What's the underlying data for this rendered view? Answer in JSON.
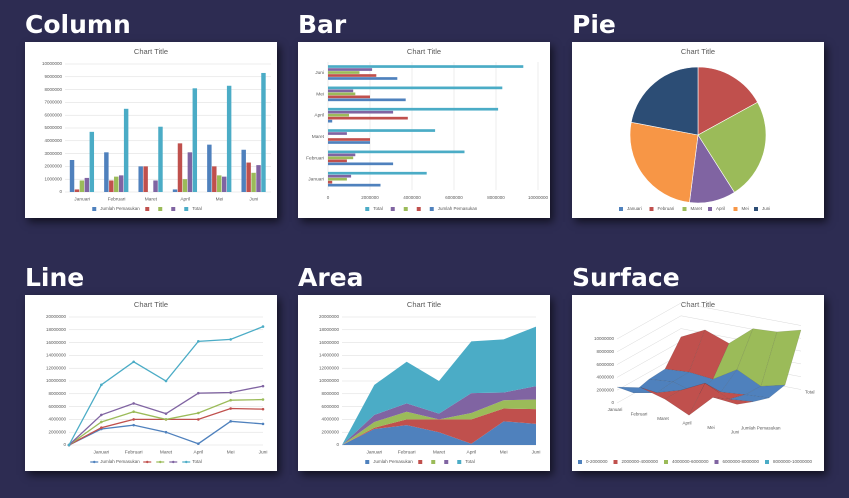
{
  "chart_data": [
    {
      "type": "column",
      "heading": "Column",
      "title": "Chart Title",
      "categories": [
        "Januari",
        "Februari",
        "Maret",
        "April",
        "Mei",
        "Juni"
      ],
      "series": [
        {
          "name": "Jumlah Pemasukan",
          "color": "#4f81bd",
          "values": [
            2500000,
            3100000,
            2000000,
            200000,
            3700000,
            3300000
          ]
        },
        {
          "name": null,
          "color": "#c0504d",
          "values": [
            200000,
            900000,
            2000000,
            3800000,
            2000000,
            2300000
          ]
        },
        {
          "name": null,
          "color": "#9bbb59",
          "values": [
            900000,
            1200000,
            0,
            1000000,
            1300000,
            1500000
          ]
        },
        {
          "name": null,
          "color": "#8064a2",
          "values": [
            1100000,
            1300000,
            900000,
            3100000,
            1200000,
            2100000
          ]
        },
        {
          "name": "Total",
          "color": "#4bacc6",
          "values": [
            4700000,
            6500000,
            5100000,
            8100000,
            8300000,
            9300000
          ]
        }
      ],
      "ylim": [
        0,
        10000000
      ],
      "yticks": [
        0,
        1000000,
        2000000,
        3000000,
        4000000,
        5000000,
        6000000,
        7000000,
        8000000,
        9000000,
        10000000
      ],
      "grid": true,
      "legend": "bottom"
    },
    {
      "type": "bar",
      "heading": "Bar",
      "title": "Chart Title",
      "categories": [
        "Januari",
        "Februari",
        "Maret",
        "April",
        "Mei",
        "Juni"
      ],
      "series": [
        {
          "name": "Jumlah Pemasukan",
          "color": "#4f81bd",
          "values": [
            2500000,
            3100000,
            2000000,
            200000,
            3700000,
            3300000
          ]
        },
        {
          "name": null,
          "color": "#c0504d",
          "values": [
            200000,
            900000,
            2000000,
            3800000,
            2000000,
            2300000
          ]
        },
        {
          "name": null,
          "color": "#9bbb59",
          "values": [
            900000,
            1200000,
            0,
            1000000,
            1300000,
            1500000
          ]
        },
        {
          "name": null,
          "color": "#8064a2",
          "values": [
            1100000,
            1300000,
            900000,
            3100000,
            1200000,
            2100000
          ]
        },
        {
          "name": "Total",
          "color": "#4bacc6",
          "values": [
            4700000,
            6500000,
            5100000,
            8100000,
            8300000,
            9300000
          ]
        }
      ],
      "xlim": [
        0,
        10000000
      ],
      "xticks": [
        0,
        2000000,
        4000000,
        6000000,
        8000000,
        10000000
      ],
      "grid": true,
      "legend": "bottom"
    },
    {
      "type": "pie",
      "heading": "Pie",
      "title": "Chart Title",
      "categories": [
        "Januari",
        "Februari",
        "Maret",
        "April",
        "Mei",
        "Juni"
      ],
      "values": [
        0,
        17,
        24,
        11,
        26,
        22
      ],
      "colors": [
        "#4f81bd",
        "#c0504d",
        "#9bbb59",
        "#8064a2",
        "#f79646",
        "#2c4d75"
      ],
      "legend": "bottom"
    },
    {
      "type": "line",
      "heading": "Line",
      "title": "Chart Title",
      "stacked": true,
      "categories": [
        null,
        "Januari",
        "Februari",
        "Maret",
        "April",
        "Mei",
        "Juni"
      ],
      "series": [
        {
          "name": "Jumlah Pemasukan",
          "color": "#4f81bd",
          "values": [
            0,
            2500000,
            3100000,
            2000000,
            200000,
            3700000,
            3300000
          ]
        },
        {
          "name": null,
          "color": "#c0504d",
          "values": [
            0,
            200000,
            900000,
            2000000,
            3800000,
            2000000,
            2300000
          ]
        },
        {
          "name": null,
          "color": "#9bbb59",
          "values": [
            0,
            900000,
            1200000,
            0,
            1000000,
            1300000,
            1500000
          ]
        },
        {
          "name": null,
          "color": "#8064a2",
          "values": [
            0,
            1100000,
            1300000,
            900000,
            3100000,
            1200000,
            2100000
          ]
        },
        {
          "name": "Total",
          "color": "#4bacc6",
          "values": [
            0,
            4700000,
            6500000,
            5100000,
            8100000,
            8300000,
            9300000
          ]
        }
      ],
      "ylim": [
        0,
        20000000
      ],
      "yticks": [
        0,
        2000000,
        4000000,
        6000000,
        8000000,
        10000000,
        12000000,
        14000000,
        16000000,
        18000000,
        20000000
      ],
      "grid": true,
      "legend": "bottom"
    },
    {
      "type": "area",
      "heading": "Area",
      "title": "Chart Title",
      "stacked": true,
      "categories": [
        null,
        "Januari",
        "Februari",
        "Maret",
        "April",
        "Mei",
        "Juni"
      ],
      "series": [
        {
          "name": "Jumlah Pemasukan",
          "color": "#4f81bd",
          "values": [
            0,
            2500000,
            3100000,
            2000000,
            200000,
            3700000,
            3300000
          ]
        },
        {
          "name": null,
          "color": "#c0504d",
          "values": [
            0,
            200000,
            900000,
            2000000,
            3800000,
            2000000,
            2300000
          ]
        },
        {
          "name": null,
          "color": "#9bbb59",
          "values": [
            0,
            900000,
            1200000,
            0,
            1000000,
            1300000,
            1500000
          ]
        },
        {
          "name": null,
          "color": "#8064a2",
          "values": [
            0,
            1100000,
            1300000,
            900000,
            3100000,
            1200000,
            2100000
          ]
        },
        {
          "name": "Total",
          "color": "#4bacc6",
          "values": [
            0,
            4700000,
            6500000,
            5100000,
            8100000,
            8300000,
            9300000
          ]
        }
      ],
      "ylim": [
        0,
        20000000
      ],
      "yticks": [
        0,
        2000000,
        4000000,
        6000000,
        8000000,
        10000000,
        12000000,
        14000000,
        16000000,
        18000000,
        20000000
      ],
      "grid": true,
      "legend": "bottom"
    },
    {
      "type": "surface",
      "heading": "Surface",
      "title": "Chart Title",
      "categories": [
        "Januari",
        "Februari",
        "Maret",
        "April",
        "Mei",
        "Juni"
      ],
      "series": [
        {
          "name": "Jumlah Pemasukan",
          "values": [
            2500000,
            3100000,
            2000000,
            200000,
            3700000,
            3300000
          ]
        },
        {
          "name": null,
          "values": [
            200000,
            900000,
            2000000,
            3800000,
            2000000,
            2300000
          ]
        },
        {
          "name": null,
          "values": [
            900000,
            1200000,
            0,
            1000000,
            1300000,
            1500000
          ]
        },
        {
          "name": null,
          "values": [
            1100000,
            1300000,
            900000,
            3100000,
            1200000,
            2100000
          ]
        },
        {
          "name": "Total",
          "values": [
            4700000,
            6500000,
            5100000,
            8100000,
            8300000,
            9300000
          ]
        }
      ],
      "zlim": [
        0,
        10000000
      ],
      "zticks": [
        0,
        2000000,
        4000000,
        6000000,
        8000000,
        10000000
      ],
      "bands": [
        {
          "label": "0-2000000",
          "color": "#4f81bd"
        },
        {
          "label": "2000000-4000000",
          "color": "#c0504d"
        },
        {
          "label": "4000000-6000000",
          "color": "#9bbb59"
        },
        {
          "label": "6000000-8000000",
          "color": "#8064a2"
        },
        {
          "label": "8000000-10000000",
          "color": "#4bacc6"
        }
      ],
      "legend": "bottom"
    }
  ]
}
